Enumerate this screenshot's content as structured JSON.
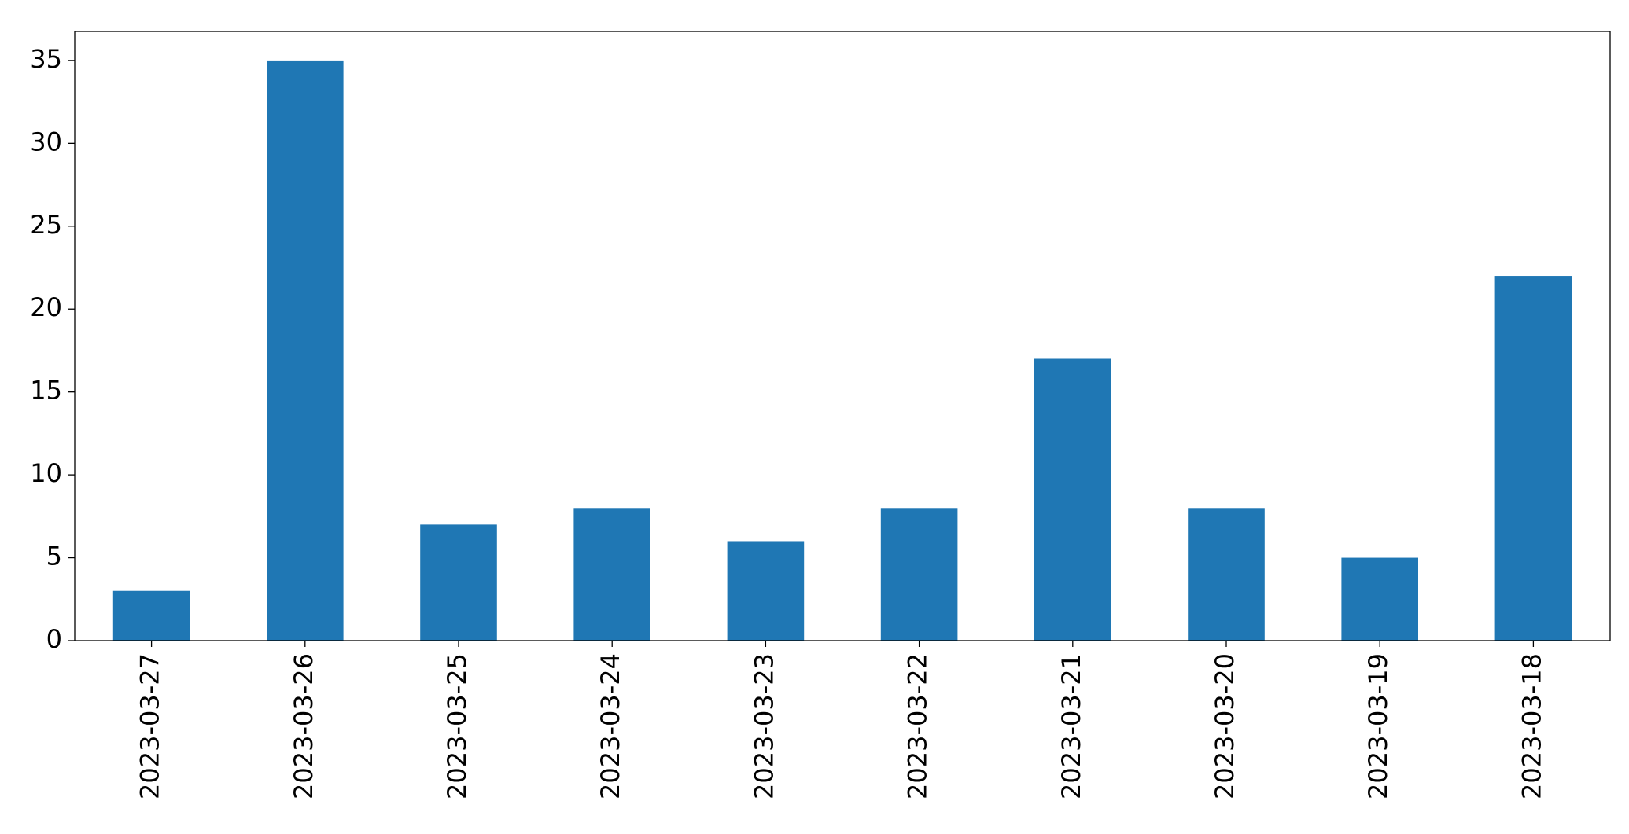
{
  "chart_data": {
    "type": "bar",
    "categories": [
      "2023-03-27",
      "2023-03-26",
      "2023-03-25",
      "2023-03-24",
      "2023-03-23",
      "2023-03-22",
      "2023-03-21",
      "2023-03-20",
      "2023-03-19",
      "2023-03-18"
    ],
    "values": [
      3,
      35,
      7,
      8,
      6,
      8,
      17,
      8,
      5,
      22
    ],
    "color": "#1f77b4",
    "ylim": [
      0,
      36.75
    ],
    "yticks": [
      0,
      5,
      10,
      15,
      20,
      25,
      30,
      35
    ],
    "grid": false
  }
}
